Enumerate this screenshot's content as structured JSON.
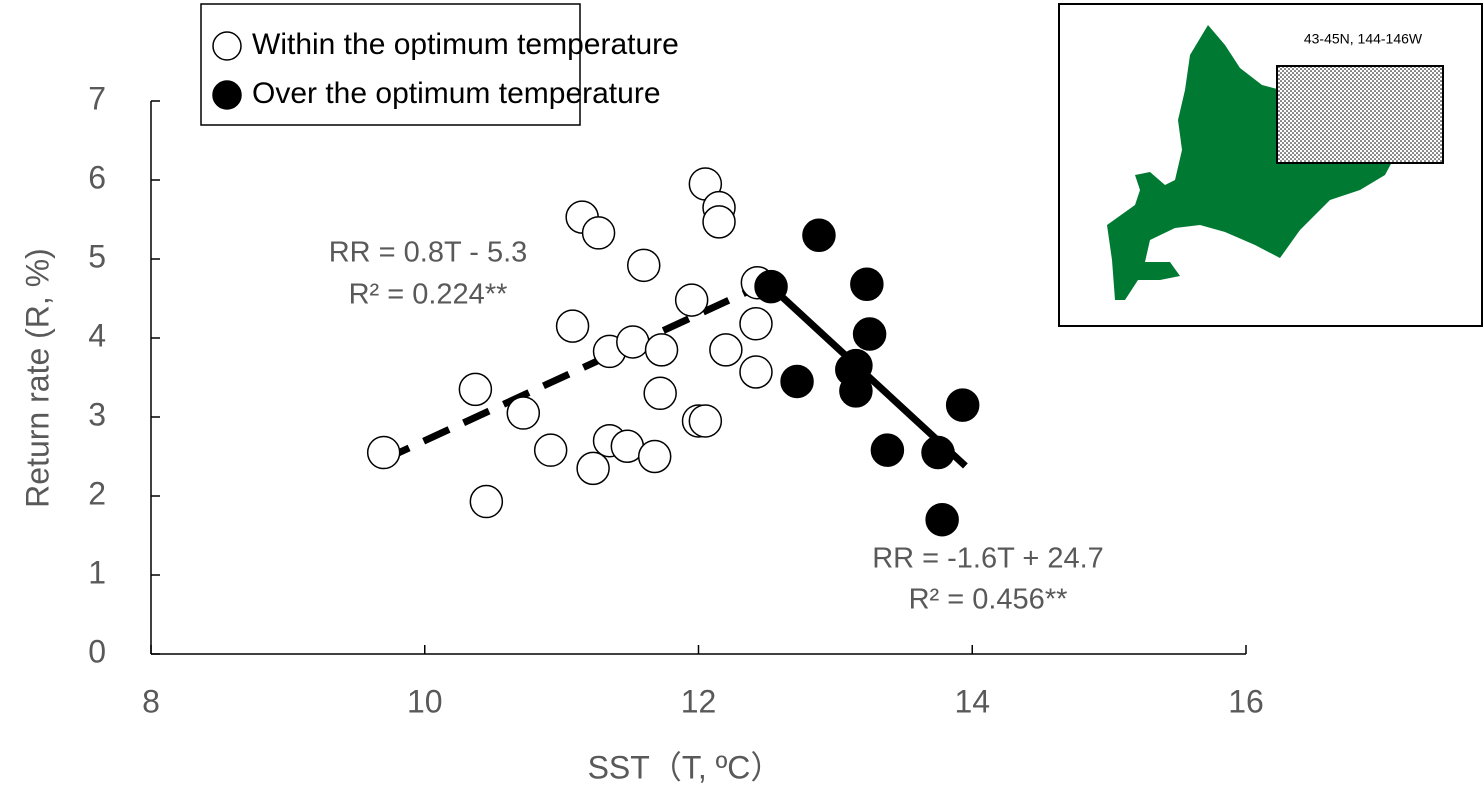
{
  "chart_data": {
    "type": "scatter",
    "xlabel": "SST（T, ºC）",
    "ylabel": "Return rate (R, %)",
    "xlim": [
      8,
      16
    ],
    "xticks": [
      8,
      10,
      12,
      14,
      16
    ],
    "ylim": [
      0,
      7
    ],
    "yticks": [
      0,
      1,
      2,
      3,
      4,
      5,
      6,
      7
    ],
    "series": [
      {
        "name": "Within the optimum temperature",
        "color": "#ffffff",
        "x": [
          9.7,
          10.37,
          10.45,
          10.72,
          10.92,
          11.08,
          11.15,
          11.23,
          11.27,
          11.35,
          11.35,
          11.48,
          11.52,
          11.6,
          11.68,
          11.72,
          11.73,
          11.95,
          12.0,
          12.05,
          12.05,
          12.15,
          12.15,
          12.2,
          12.42,
          12.42,
          12.43
        ],
        "values": [
          2.55,
          3.35,
          1.93,
          3.05,
          2.58,
          4.15,
          5.53,
          2.35,
          5.33,
          2.7,
          3.83,
          2.63,
          3.95,
          4.92,
          2.5,
          3.3,
          3.85,
          4.48,
          2.95,
          2.95,
          5.95,
          5.65,
          5.47,
          3.85,
          3.57,
          4.18,
          4.7
        ]
      },
      {
        "name": "Over the optimum temperature",
        "color": "#000000",
        "x": [
          12.53,
          12.72,
          12.88,
          13.12,
          13.15,
          13.15,
          13.23,
          13.25,
          13.38,
          13.75,
          13.78,
          13.93
        ],
        "values": [
          4.65,
          3.45,
          5.3,
          3.6,
          3.65,
          3.33,
          4.68,
          4.05,
          2.58,
          2.55,
          1.7,
          3.15
        ]
      }
    ],
    "trendlines": [
      {
        "x": [
          9.7,
          12.45
        ],
        "values": [
          2.46,
          4.66
        ],
        "dashed": true,
        "equation": "RR = 0.8T - 5.3",
        "r2": "R² = 0.224**"
      },
      {
        "x": [
          12.53,
          13.95
        ],
        "values": [
          4.65,
          2.38
        ],
        "dashed": false,
        "equation": "RR = -1.6T + 24.7",
        "r2": "R² = 0.456**"
      }
    ],
    "inset_label": "43-45N, 144-146W"
  }
}
